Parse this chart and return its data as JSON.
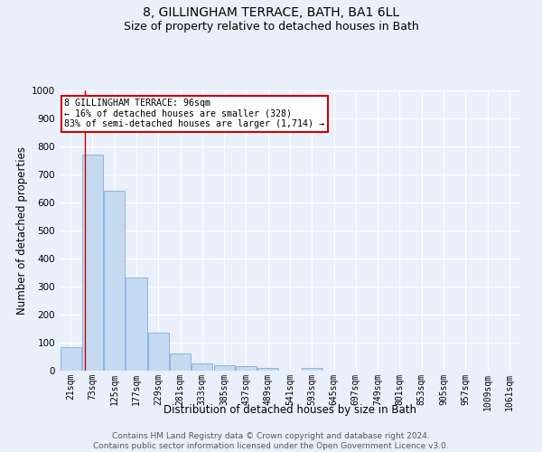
{
  "title": "8, GILLINGHAM TERRACE, BATH, BA1 6LL",
  "subtitle": "Size of property relative to detached houses in Bath",
  "xlabel": "Distribution of detached houses by size in Bath",
  "ylabel": "Number of detached properties",
  "categories": [
    "21sqm",
    "73sqm",
    "125sqm",
    "177sqm",
    "229sqm",
    "281sqm",
    "333sqm",
    "385sqm",
    "437sqm",
    "489sqm",
    "541sqm",
    "593sqm",
    "645sqm",
    "697sqm",
    "749sqm",
    "801sqm",
    "853sqm",
    "905sqm",
    "957sqm",
    "1009sqm",
    "1061sqm"
  ],
  "values": [
    83,
    770,
    643,
    333,
    135,
    60,
    25,
    20,
    15,
    10,
    0,
    10,
    0,
    0,
    0,
    0,
    0,
    0,
    0,
    0,
    0
  ],
  "bar_color": "#c5d9f1",
  "bar_edge_color": "#8db4e2",
  "vline_color": "#cc0000",
  "annotation_text": "8 GILLINGHAM TERRACE: 96sqm\n← 16% of detached houses are smaller (328)\n83% of semi-detached houses are larger (1,714) →",
  "annotation_box_color": "#ffffff",
  "annotation_box_edge_color": "#cc0000",
  "footer_text": "Contains HM Land Registry data © Crown copyright and database right 2024.\nContains public sector information licensed under the Open Government Licence v3.0.",
  "ylim": [
    0,
    1000
  ],
  "yticks": [
    0,
    100,
    200,
    300,
    400,
    500,
    600,
    700,
    800,
    900,
    1000
  ],
  "background_color": "#eaf0fb",
  "grid_color": "#ffffff",
  "title_fontsize": 10,
  "subtitle_fontsize": 9,
  "axis_label_fontsize": 8.5,
  "tick_fontsize": 7,
  "footer_fontsize": 6.5
}
